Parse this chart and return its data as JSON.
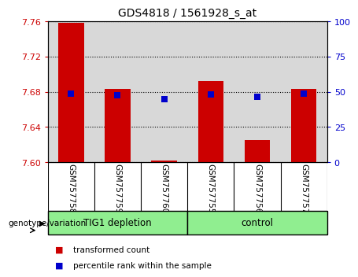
{
  "title": "GDS4818 / 1561928_s_at",
  "samples": [
    "GSM757758",
    "GSM757759",
    "GSM757760",
    "GSM757755",
    "GSM757756",
    "GSM757757"
  ],
  "bar_base": 7.6,
  "transformed_counts": [
    7.758,
    7.683,
    7.602,
    7.692,
    7.625,
    7.683
  ],
  "percentile_ranks": [
    48.5,
    47.5,
    44.5,
    48.0,
    46.5,
    48.5
  ],
  "ylim_left": [
    7.6,
    7.76
  ],
  "ylim_right": [
    0,
    100
  ],
  "yticks_left": [
    7.6,
    7.64,
    7.68,
    7.72,
    7.76
  ],
  "yticks_right": [
    0,
    25,
    50,
    75,
    100
  ],
  "bar_color": "#CC0000",
  "dot_color": "#0000CC",
  "bar_width": 0.55,
  "dot_size": 35,
  "tick_color_left": "#CC0000",
  "tick_color_right": "#0000CC",
  "bg_color_plot": "#D8D8D8",
  "bg_color_group": "#90EE90",
  "legend_items": [
    "transformed count",
    "percentile rank within the sample"
  ],
  "legend_colors": [
    "#CC0000",
    "#0000CC"
  ],
  "group_defs": [
    {
      "start": 0,
      "end": 2,
      "label": "TIG1 depletion"
    },
    {
      "start": 3,
      "end": 5,
      "label": "control"
    }
  ]
}
